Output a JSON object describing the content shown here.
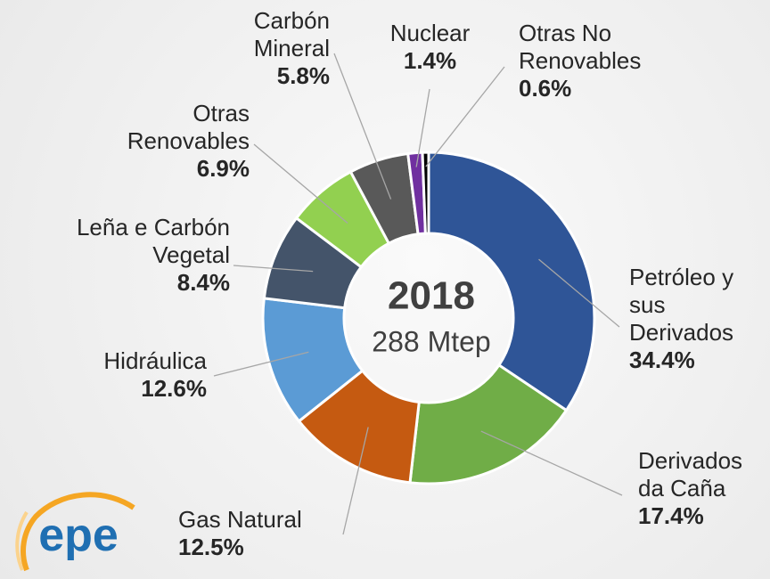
{
  "chart_data": {
    "type": "donut",
    "categories": [
      "Petróleo y sus Derivados",
      "Derivados da Caña",
      "Gas Natural",
      "Hidráulica",
      "Leña e Carbón Vegetal",
      "Otras Renovables",
      "Carbón Mineral",
      "Nuclear",
      "Otras No Renovables"
    ],
    "values": [
      34.4,
      17.4,
      12.5,
      12.6,
      8.4,
      6.9,
      5.8,
      1.4,
      0.6
    ],
    "value_labels": [
      "34.4%",
      "17.4%",
      "12.5%",
      "12.6%",
      "8.4%",
      "6.9%",
      "5.8%",
      "1.4%",
      "0.6%"
    ],
    "colors": [
      "#2f5597",
      "#70ad47",
      "#c55a11",
      "#5b9bd5",
      "#44546a",
      "#92d050",
      "#595959",
      "#7030a0",
      "#000000"
    ],
    "center_title": "2018",
    "center_subtitle": "288 Mtep"
  },
  "logo": "epe"
}
